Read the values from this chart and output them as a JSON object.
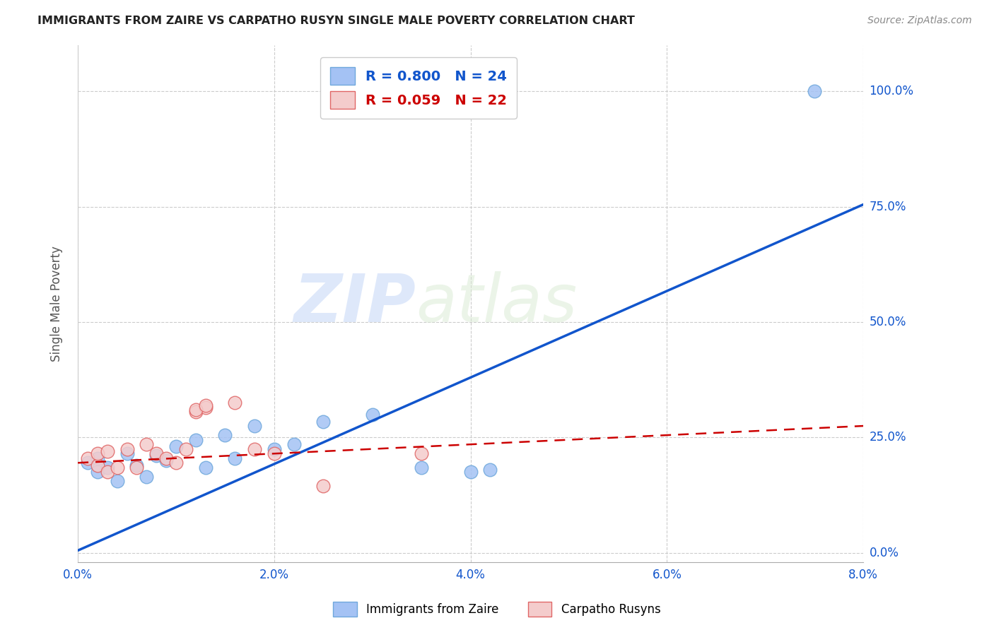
{
  "title": "IMMIGRANTS FROM ZAIRE VS CARPATHO RUSYN SINGLE MALE POVERTY CORRELATION CHART",
  "source": "Source: ZipAtlas.com",
  "ylabel": "Single Male Poverty",
  "xlim": [
    0.0,
    0.08
  ],
  "ylim": [
    -0.02,
    1.1
  ],
  "xticks": [
    0.0,
    0.02,
    0.04,
    0.06,
    0.08
  ],
  "xtick_labels": [
    "0.0%",
    "2.0%",
    "4.0%",
    "6.0%",
    "8.0%"
  ],
  "ytick_labels": [
    "0.0%",
    "25.0%",
    "50.0%",
    "75.0%",
    "100.0%"
  ],
  "yticks": [
    0.0,
    0.25,
    0.5,
    0.75,
    1.0
  ],
  "blue_R": "0.800",
  "blue_N": "24",
  "pink_R": "0.059",
  "pink_N": "22",
  "blue_color": "#a4c2f4",
  "pink_color": "#f4cccc",
  "blue_dot_edge": "#6fa8dc",
  "pink_dot_edge": "#e06666",
  "blue_line_color": "#1155cc",
  "pink_line_color": "#cc0000",
  "grid_color": "#cccccc",
  "background_color": "#ffffff",
  "watermark_zip": "ZIP",
  "watermark_atlas": "atlas",
  "blue_scatter_x": [
    0.001,
    0.002,
    0.002,
    0.003,
    0.004,
    0.005,
    0.006,
    0.007,
    0.008,
    0.009,
    0.01,
    0.012,
    0.013,
    0.015,
    0.016,
    0.018,
    0.02,
    0.022,
    0.025,
    0.03,
    0.035,
    0.04,
    0.042,
    0.075
  ],
  "blue_scatter_y": [
    0.195,
    0.175,
    0.205,
    0.185,
    0.155,
    0.215,
    0.19,
    0.165,
    0.21,
    0.2,
    0.23,
    0.245,
    0.185,
    0.255,
    0.205,
    0.275,
    0.225,
    0.235,
    0.285,
    0.3,
    0.185,
    0.175,
    0.18,
    1.0
  ],
  "pink_scatter_x": [
    0.001,
    0.002,
    0.002,
    0.003,
    0.003,
    0.004,
    0.005,
    0.006,
    0.007,
    0.008,
    0.009,
    0.01,
    0.011,
    0.012,
    0.013,
    0.016,
    0.018,
    0.02,
    0.025,
    0.035,
    0.012,
    0.013
  ],
  "pink_scatter_y": [
    0.205,
    0.19,
    0.215,
    0.175,
    0.22,
    0.185,
    0.225,
    0.185,
    0.235,
    0.215,
    0.205,
    0.195,
    0.225,
    0.305,
    0.315,
    0.325,
    0.225,
    0.215,
    0.145,
    0.215,
    0.31,
    0.32
  ],
  "blue_trend_x": [
    0.0,
    0.08
  ],
  "blue_trend_y": [
    0.005,
    0.755
  ],
  "pink_trend_x": [
    0.0,
    0.08
  ],
  "pink_trend_y": [
    0.195,
    0.275
  ]
}
